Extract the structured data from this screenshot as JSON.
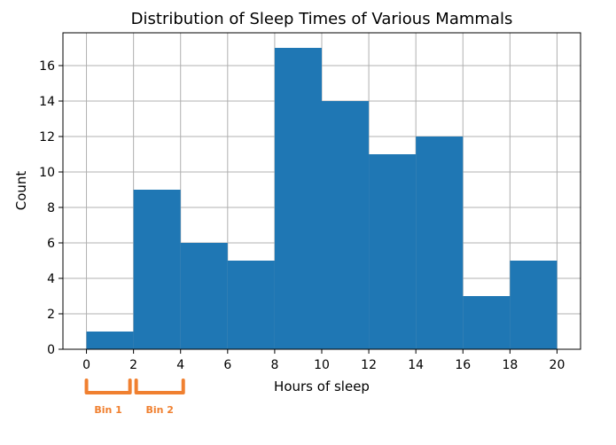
{
  "chart_data": {
    "type": "bar",
    "title": "Distribution of Sleep Times of Various Mammals",
    "xlabel": "Hours of sleep",
    "ylabel": "Count",
    "bin_edges": [
      0,
      2,
      4,
      6,
      8,
      10,
      12,
      14,
      16,
      18,
      20
    ],
    "values": [
      1,
      9,
      6,
      5,
      17,
      14,
      11,
      12,
      3,
      5
    ],
    "xlim": [
      -1,
      21
    ],
    "ylim": [
      0,
      17.85
    ],
    "xticks": [
      0,
      2,
      4,
      6,
      8,
      10,
      12,
      14,
      16,
      18,
      20
    ],
    "yticks": [
      0,
      2,
      4,
      6,
      8,
      10,
      12,
      14,
      16
    ],
    "grid": true,
    "bar_color": "#1f77b4",
    "grid_color": "#b0b0b0",
    "annotations": [
      {
        "label": "Bin 1",
        "range": [
          0,
          2
        ],
        "color": "#f08030"
      },
      {
        "label": "Bin 2",
        "range": [
          2,
          4
        ],
        "color": "#f08030"
      }
    ]
  }
}
